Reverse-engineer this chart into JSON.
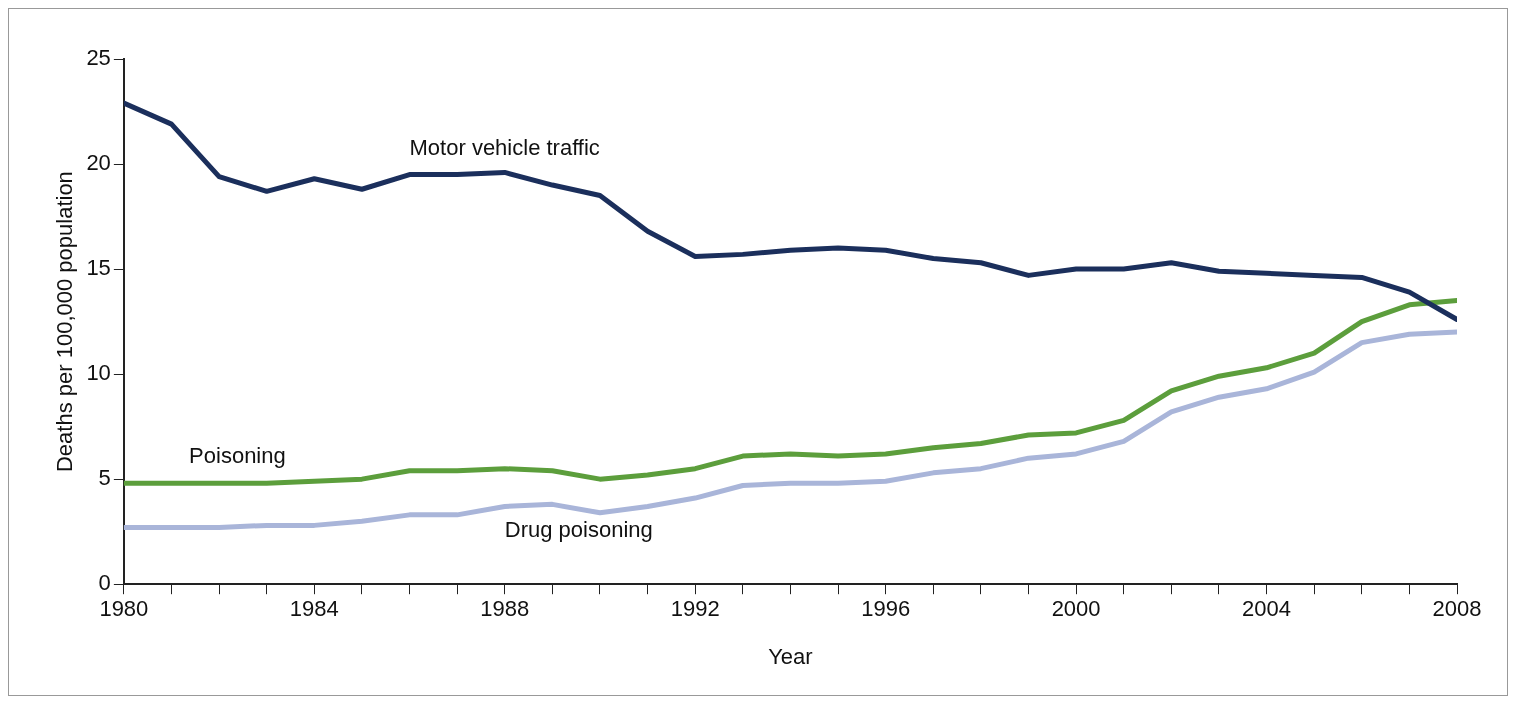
{
  "chart_data": {
    "type": "line",
    "xlabel": "Year",
    "ylabel": "Deaths per 100,000 population",
    "x": [
      1980,
      1981,
      1982,
      1983,
      1984,
      1985,
      1986,
      1987,
      1988,
      1989,
      1990,
      1991,
      1992,
      1993,
      1994,
      1995,
      1996,
      1997,
      1998,
      1999,
      2000,
      2001,
      2002,
      2003,
      2004,
      2005,
      2006,
      2007,
      2008
    ],
    "series": [
      {
        "name": "Motor vehicle traffic",
        "color": "#1b2f5c",
        "values": [
          22.9,
          21.9,
          19.4,
          18.7,
          19.3,
          18.8,
          19.5,
          19.5,
          19.6,
          19.0,
          18.5,
          16.8,
          15.6,
          15.7,
          15.9,
          16.0,
          15.9,
          15.5,
          15.3,
          14.7,
          15.0,
          15.0,
          15.3,
          14.9,
          14.8,
          14.7,
          14.6,
          13.9,
          12.6
        ]
      },
      {
        "name": "Poisoning",
        "color": "#5c9e3c",
        "values": [
          4.8,
          4.8,
          4.8,
          4.8,
          4.9,
          5.0,
          5.4,
          5.4,
          5.5,
          5.4,
          5.0,
          5.2,
          5.5,
          6.1,
          6.2,
          6.1,
          6.2,
          6.5,
          6.7,
          7.1,
          7.2,
          7.8,
          9.2,
          9.9,
          10.3,
          11.0,
          12.5,
          13.3,
          13.5
        ]
      },
      {
        "name": "Drug poisoning",
        "color": "#a9b5d9",
        "values": [
          2.7,
          2.7,
          2.7,
          2.8,
          2.8,
          3.0,
          3.3,
          3.3,
          3.7,
          3.8,
          3.4,
          3.7,
          4.1,
          4.7,
          4.8,
          4.8,
          4.9,
          5.3,
          5.5,
          6.0,
          6.2,
          6.8,
          8.2,
          8.9,
          9.3,
          10.1,
          11.5,
          11.9,
          12.0
        ]
      }
    ],
    "xlim": [
      1980,
      2008
    ],
    "xticks": [
      1980,
      {
        "value": 1981,
        "label": null
      },
      {
        "value": 1982,
        "label": null
      },
      {
        "value": 1983,
        "label": null
      },
      1984,
      {
        "value": 1985,
        "label": null
      },
      {
        "value": 1986,
        "label": null
      },
      {
        "value": 1987,
        "label": null
      },
      1988,
      {
        "value": 1989,
        "label": null
      },
      {
        "value": 1990,
        "label": null
      },
      {
        "value": 1991,
        "label": null
      },
      1992,
      {
        "value": 1993,
        "label": null
      },
      {
        "value": 1994,
        "label": null
      },
      {
        "value": 1995,
        "label": null
      },
      1996,
      {
        "value": 1997,
        "label": null
      },
      {
        "value": 1998,
        "label": null
      },
      {
        "value": 1999,
        "label": null
      },
      2000,
      {
        "value": 2001,
        "label": null
      },
      {
        "value": 2002,
        "label": null
      },
      {
        "value": 2003,
        "label": null
      },
      2004,
      {
        "value": 2005,
        "label": null
      },
      {
        "value": 2006,
        "label": null
      },
      {
        "value": 2007,
        "label": null
      },
      2008
    ],
    "ylim": [
      0,
      25
    ],
    "yticks": [
      0,
      5,
      10,
      15,
      20,
      25
    ],
    "grid": false,
    "legend": false,
    "marker": "none",
    "line_style": "solid"
  }
}
